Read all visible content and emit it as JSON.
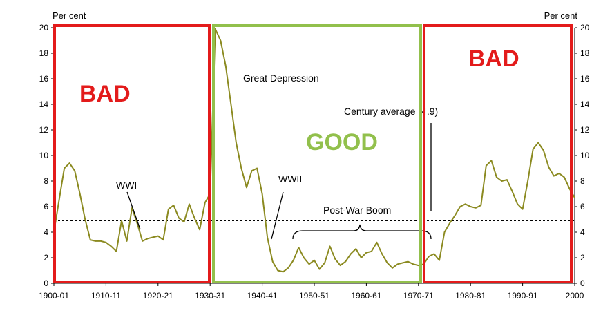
{
  "chart_data": {
    "type": "line",
    "unit_left": "Per cent",
    "unit_right": "Per cent",
    "ylim": [
      0,
      20
    ],
    "y_ticks": [
      "0",
      "2",
      "4",
      "6",
      "8",
      "10",
      "12",
      "14",
      "16",
      "18",
      "20"
    ],
    "xlim": [
      1900,
      2000
    ],
    "x_ticks": [
      {
        "x": 1900,
        "label": "1900-01"
      },
      {
        "x": 1910,
        "label": "1910-11"
      },
      {
        "x": 1920,
        "label": "1920-21"
      },
      {
        "x": 1930,
        "label": "1930-31"
      },
      {
        "x": 1940,
        "label": "1940-41"
      },
      {
        "x": 1950,
        "label": "1950-51"
      },
      {
        "x": 1960,
        "label": "1960-61"
      },
      {
        "x": 1970,
        "label": "1970-71"
      },
      {
        "x": 1980,
        "label": "1980-81"
      },
      {
        "x": 1990,
        "label": "1990-91"
      },
      {
        "x": 2000,
        "label": "2000"
      }
    ],
    "reference_line": {
      "value": 4.9,
      "label": "Century average (4.9)"
    },
    "series": [
      {
        "color": "#8b8a20",
        "x": [
          1900,
          1901,
          1902,
          1903,
          1904,
          1905,
          1906,
          1907,
          1908,
          1909,
          1910,
          1911,
          1912,
          1913,
          1914,
          1915,
          1916,
          1917,
          1918,
          1919,
          1920,
          1921,
          1922,
          1923,
          1924,
          1925,
          1926,
          1927,
          1928,
          1929,
          1930,
          1931,
          1932,
          1933,
          1934,
          1935,
          1936,
          1937,
          1938,
          1939,
          1940,
          1941,
          1942,
          1943,
          1944,
          1945,
          1946,
          1947,
          1948,
          1949,
          1950,
          1951,
          1952,
          1953,
          1954,
          1955,
          1956,
          1957,
          1958,
          1959,
          1960,
          1961,
          1962,
          1963,
          1964,
          1965,
          1966,
          1967,
          1968,
          1969,
          1970,
          1971,
          1972,
          1973,
          1974,
          1975,
          1976,
          1977,
          1978,
          1979,
          1980,
          1981,
          1982,
          1983,
          1984,
          1985,
          1986,
          1987,
          1988,
          1989,
          1990,
          1991,
          1992,
          1993,
          1994,
          1995,
          1996,
          1997,
          1998,
          1999,
          2000
        ],
        "values": [
          4.0,
          6.5,
          9.0,
          9.4,
          8.8,
          7.0,
          5.0,
          3.4,
          3.3,
          3.3,
          3.2,
          2.9,
          2.5,
          4.9,
          3.3,
          5.9,
          4.7,
          3.3,
          3.5,
          3.6,
          3.7,
          3.4,
          5.8,
          6.1,
          5.1,
          4.8,
          6.2,
          5.1,
          4.2,
          6.3,
          7.0,
          19.9,
          19.0,
          17.0,
          14.0,
          11.0,
          9.0,
          7.5,
          8.8,
          9.0,
          7.0,
          3.6,
          1.7,
          1.0,
          0.9,
          1.2,
          1.8,
          2.8,
          2.0,
          1.5,
          1.8,
          1.1,
          1.6,
          2.9,
          1.9,
          1.4,
          1.7,
          2.3,
          2.7,
          2.0,
          2.4,
          2.5,
          3.2,
          2.3,
          1.6,
          1.2,
          1.5,
          1.6,
          1.7,
          1.5,
          1.4,
          1.5,
          2.1,
          2.3,
          1.8,
          4.0,
          4.7,
          5.3,
          6.0,
          6.2,
          6.0,
          5.9,
          6.1,
          9.2,
          9.6,
          8.3,
          8.0,
          8.1,
          7.2,
          6.2,
          5.8,
          8.0,
          10.5,
          11.0,
          10.4,
          9.1,
          8.4,
          8.6,
          8.3,
          7.4,
          6.7
        ]
      }
    ],
    "annotations": [
      {
        "text": "Great Depression"
      },
      {
        "text": "WWI"
      },
      {
        "text": "WWII"
      },
      {
        "text": "Post-War Boom"
      }
    ],
    "regions": [
      {
        "label": "BAD",
        "from": 1900,
        "to": 1930,
        "color": "#e31b1b"
      },
      {
        "label": "GOOD",
        "from": 1931,
        "to": 1970,
        "color": "#92c04c"
      },
      {
        "label": "BAD",
        "from": 1972,
        "to": 2000,
        "color": "#e31b1b"
      }
    ]
  }
}
